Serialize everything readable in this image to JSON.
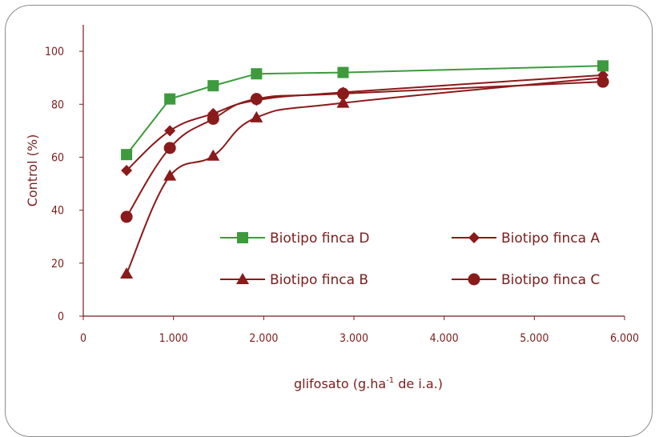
{
  "chart_data": {
    "type": "line",
    "title": "",
    "xlabel_main": "glifosato (g.ha",
    "xlabel_sup": "-1",
    "xlabel_tail": " de i.a.)",
    "ylabel": "Control (%)",
    "xlim": [
      0,
      6000
    ],
    "ylim": [
      0,
      110
    ],
    "xticks": [
      0,
      1000,
      2000,
      3000,
      4000,
      5000,
      6000
    ],
    "xtick_labels": [
      "0",
      "1.000",
      "2.000",
      "3.000",
      "4.000",
      "5.000",
      "6.000"
    ],
    "yticks": [
      0,
      20,
      40,
      60,
      80,
      100
    ],
    "ytick_labels": [
      "0",
      "20",
      "40",
      "60",
      "80",
      "100"
    ],
    "grid": false,
    "legend_position": "inside center-right",
    "series": [
      {
        "name": "Biotipo finca D",
        "marker": "square",
        "color": "#3d9a3d",
        "smooth": false,
        "x": [
          480,
          960,
          1440,
          1920,
          2880,
          5760
        ],
        "y": [
          61,
          82,
          87,
          91.5,
          92,
          94.5
        ]
      },
      {
        "name": "Biotipo finca A",
        "marker": "diamond",
        "color": "#8b1a1a",
        "smooth": true,
        "x": [
          480,
          960,
          1440,
          1920,
          2880,
          5760
        ],
        "y": [
          55,
          70,
          76.5,
          81.5,
          84.5,
          91
        ]
      },
      {
        "name": "Biotipo finca B",
        "marker": "triangle",
        "color": "#8b1a1a",
        "smooth": true,
        "x": [
          480,
          960,
          1440,
          1920,
          2880,
          5760
        ],
        "y": [
          16,
          53,
          60.5,
          75,
          80.5,
          90
        ]
      },
      {
        "name": "Biotipo finca C",
        "marker": "circle",
        "color": "#8b1a1a",
        "smooth": true,
        "x": [
          480,
          960,
          1440,
          1920,
          2880,
          5760
        ],
        "y": [
          37.5,
          63.5,
          74.5,
          82,
          84,
          88.5
        ]
      }
    ]
  }
}
